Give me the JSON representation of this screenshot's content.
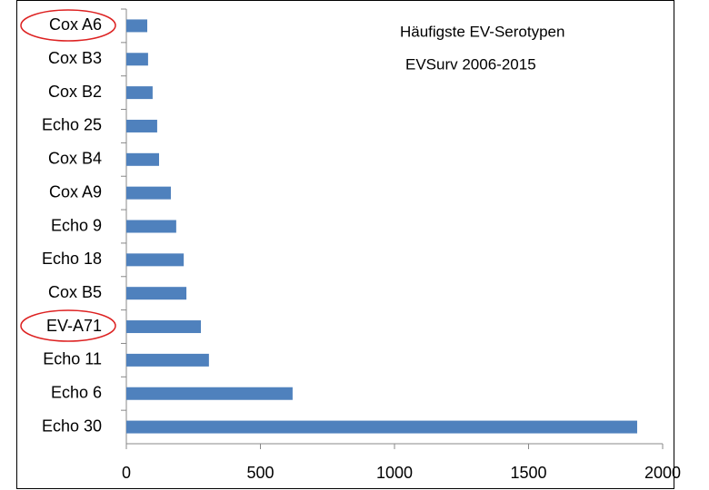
{
  "chart_data": {
    "type": "bar",
    "orientation": "horizontal",
    "title": [
      "Häufigste EV-Serotypen",
      "EVSurv 2006-2015"
    ],
    "categories": [
      "Cox A6",
      "Cox B3",
      "Cox B2",
      "Echo 25",
      "Cox B4",
      "Cox A9",
      "Echo 9",
      "Echo 18",
      "Cox B5",
      "EV-A71",
      "Echo 11",
      "Echo 6",
      "Echo 30"
    ],
    "values": [
      78,
      81,
      98,
      115,
      122,
      166,
      186,
      214,
      224,
      278,
      308,
      620,
      1905
    ],
    "color": "#4f81bd",
    "xlim": [
      0,
      2000
    ],
    "xticks": [
      0,
      500,
      1000,
      1500,
      2000
    ],
    "grid": false
  }
}
